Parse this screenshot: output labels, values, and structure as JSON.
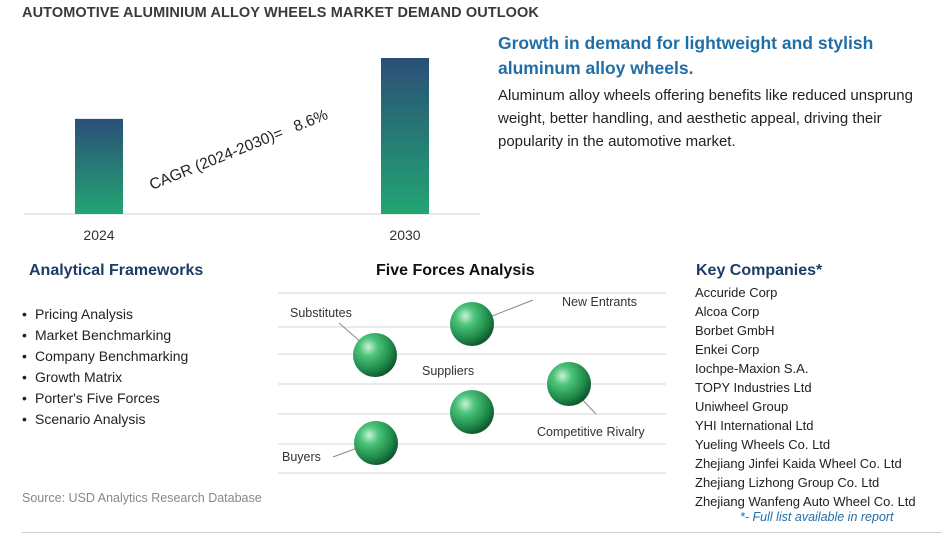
{
  "title": "AUTOMOTIVE ALUMINIUM ALLOY WHEELS MARKET DEMAND OUTLOOK",
  "chart_data": {
    "type": "bar",
    "categories": [
      "2024",
      "2030"
    ],
    "values": [
      1.0,
      1.64
    ],
    "title": "",
    "xlabel": "",
    "ylabel": "",
    "annotation": "CAGR (2024-2030)=   8.6%",
    "grid": false,
    "axis_labels_shown": false
  },
  "headline": "Growth in demand for lightweight and stylish aluminum alloy wheels.",
  "description": "Aluminum alloy wheels offering benefits like reduced unsprung weight, better handling, and aesthetic appeal, driving their popularity in the automotive market.",
  "frameworks": {
    "heading": "Analytical Frameworks",
    "items": [
      "Pricing Analysis",
      "Market Benchmarking",
      "Company Benchmarking",
      "Growth Matrix",
      "Porter's Five Forces",
      "Scenario Analysis"
    ]
  },
  "five_forces": {
    "heading": "Five Forces Analysis",
    "labels": {
      "substitutes": "Substitutes",
      "new_entrants": "New Entrants",
      "suppliers": "Suppliers",
      "competitive_rivalry": "Competitive Rivalry",
      "buyers": "Buyers"
    }
  },
  "companies": {
    "heading": "Key Companies*",
    "items": [
      "Accuride Corp",
      "Alcoa Corp",
      "Borbet GmbH",
      "Enkei Corp",
      "Iochpe-Maxion S.A.",
      "TOPY Industries Ltd",
      "Uniwheel Group",
      "YHI International Ltd",
      "Yueling Wheels Co. Ltd",
      "Zhejiang Jinfei Kaida Wheel Co. Ltd",
      "Zhejiang Lizhong Group Co. Ltd",
      "Zhejiang Wanfeng Auto Wheel Co. Ltd"
    ],
    "note": "*- Full list available in report"
  },
  "source": "Source: USD Analytics Research Database",
  "colors": {
    "bar_top": "#2b4f78",
    "bar_bottom": "#22a572",
    "headline": "#1f6ea8",
    "heading": "#1d3c66",
    "sphere": "#2e9f5c"
  }
}
